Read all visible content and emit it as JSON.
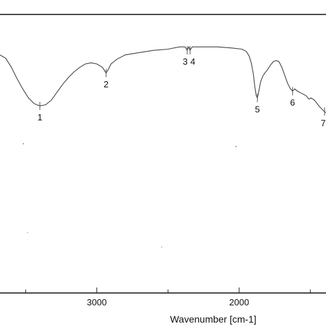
{
  "chart_data": {
    "type": "line",
    "title": "",
    "xlabel": "Wavenumber [cm-1]",
    "ylabel": "",
    "x_reversed": true,
    "xlim": [
      3680,
      1390
    ],
    "ylim": [
      0,
      1
    ],
    "xticks": [
      {
        "value": 3000,
        "label": "3000"
      },
      {
        "value": 2000,
        "label": "2000"
      }
    ],
    "minor_xticks": [
      3500,
      2500,
      1500
    ],
    "grid": false,
    "legend": "none",
    "series": [
      {
        "color": "#444444",
        "points": [
          [
            3680,
            0.85
          ],
          [
            3640,
            0.82
          ],
          [
            3600,
            0.74
          ],
          [
            3560,
            0.64
          ],
          [
            3520,
            0.55
          ],
          [
            3480,
            0.47
          ],
          [
            3440,
            0.42
          ],
          [
            3400,
            0.4
          ],
          [
            3360,
            0.41
          ],
          [
            3320,
            0.45
          ],
          [
            3280,
            0.52
          ],
          [
            3240,
            0.59
          ],
          [
            3200,
            0.65
          ],
          [
            3160,
            0.7
          ],
          [
            3120,
            0.74
          ],
          [
            3080,
            0.77
          ],
          [
            3040,
            0.78
          ],
          [
            3000,
            0.77
          ],
          [
            2960,
            0.74
          ],
          [
            2935,
            0.69
          ],
          [
            2920,
            0.72
          ],
          [
            2900,
            0.77
          ],
          [
            2860,
            0.81
          ],
          [
            2800,
            0.85
          ],
          [
            2700,
            0.87
          ],
          [
            2600,
            0.89
          ],
          [
            2500,
            0.9
          ],
          [
            2420,
            0.92
          ],
          [
            2380,
            0.92
          ],
          [
            2365,
            0.89
          ],
          [
            2355,
            0.92
          ],
          [
            2345,
            0.89
          ],
          [
            2330,
            0.92
          ],
          [
            2250,
            0.92
          ],
          [
            2150,
            0.92
          ],
          [
            2050,
            0.91
          ],
          [
            1980,
            0.9
          ],
          [
            1950,
            0.88
          ],
          [
            1930,
            0.84
          ],
          [
            1915,
            0.78
          ],
          [
            1900,
            0.68
          ],
          [
            1890,
            0.57
          ],
          [
            1880,
            0.49
          ],
          [
            1872,
            0.47
          ],
          [
            1862,
            0.53
          ],
          [
            1850,
            0.61
          ],
          [
            1835,
            0.66
          ],
          [
            1820,
            0.69
          ],
          [
            1800,
            0.72
          ],
          [
            1780,
            0.76
          ],
          [
            1760,
            0.79
          ],
          [
            1740,
            0.8
          ],
          [
            1720,
            0.79
          ],
          [
            1700,
            0.74
          ],
          [
            1680,
            0.67
          ],
          [
            1660,
            0.6
          ],
          [
            1640,
            0.55
          ],
          [
            1625,
            0.53
          ],
          [
            1610,
            0.55
          ],
          [
            1590,
            0.53
          ],
          [
            1560,
            0.51
          ],
          [
            1530,
            0.49
          ],
          [
            1510,
            0.46
          ],
          [
            1495,
            0.47
          ],
          [
            1470,
            0.45
          ],
          [
            1440,
            0.4
          ],
          [
            1410,
            0.36
          ],
          [
            1390,
            0.34
          ]
        ]
      }
    ],
    "peaks": [
      {
        "label": "1",
        "x": 3400,
        "y": 0.4
      },
      {
        "label": "2",
        "x": 2935,
        "y": 0.69
      },
      {
        "label": "3",
        "x": 2365,
        "y": 0.89
      },
      {
        "label": "4",
        "x": 2345,
        "y": 0.89
      },
      {
        "label": "5",
        "x": 1872,
        "y": 0.47
      },
      {
        "label": "6",
        "x": 1625,
        "y": 0.53
      },
      {
        "label": "7",
        "x": 1400,
        "y": 0.35
      }
    ]
  }
}
